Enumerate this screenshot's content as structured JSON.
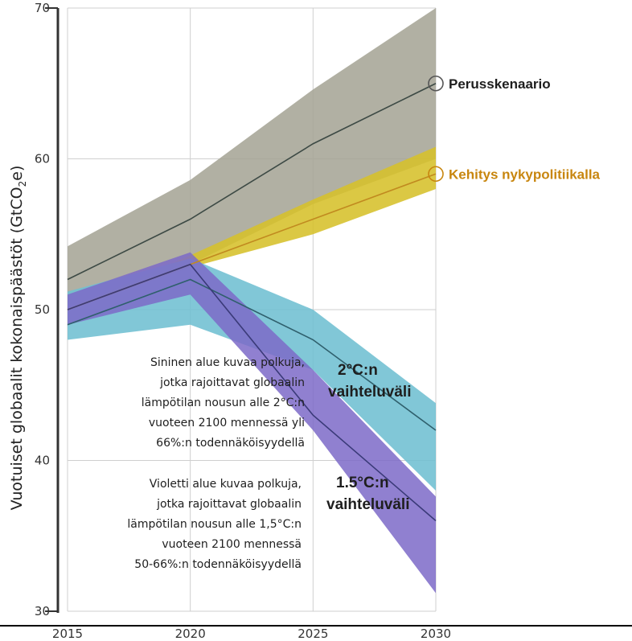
{
  "chart_data": {
    "type": "area",
    "ylabel_main": "Vuotuiset globaalit kokonaispäästöt (GtCO",
    "ylabel_sub": "2",
    "ylabel_end": "e)",
    "xlabel": "",
    "x": [
      2015,
      2020,
      2025,
      2030
    ],
    "xlim": [
      2015,
      2030
    ],
    "ylim": [
      30,
      70
    ],
    "x_ticks": [
      "2015",
      "2020",
      "2025",
      "2030"
    ],
    "y_ticks": [
      "30",
      "40",
      "50",
      "60",
      "70"
    ],
    "grid": true,
    "bands": [
      {
        "id": "baseline",
        "color": "#a6a596",
        "x": [
          2015,
          2020,
          2025,
          2030
        ],
        "low": [
          50,
          53,
          57,
          60
        ],
        "high": [
          54.2,
          58.6,
          64.6,
          70
        ],
        "center": [
          52,
          56,
          61,
          65
        ],
        "line_color": "#3d4a45"
      },
      {
        "id": "current-policy",
        "color": "#d6c02a",
        "x": [
          2015,
          2020,
          2025,
          2030
        ],
        "low": [
          50,
          52.8,
          55,
          58
        ],
        "high": [
          50,
          53.6,
          57.3,
          60.8
        ],
        "center": [
          50,
          53,
          56,
          59
        ],
        "line_color": "#c18a1f"
      },
      {
        "id": "range-2c",
        "color": "#6fbfd2",
        "x": [
          2015,
          2020,
          2025,
          2030
        ],
        "low": [
          48,
          49,
          46,
          38
        ],
        "high": [
          51.2,
          53.4,
          50,
          43.8
        ],
        "center": [
          49,
          52,
          48,
          42
        ],
        "line_color": "#2f5f6c"
      },
      {
        "id": "range-15c",
        "color": "#7c6ac8",
        "x": [
          2015,
          2020,
          2025,
          2030
        ],
        "low": [
          49,
          51,
          42,
          31.2
        ],
        "high": [
          51,
          53.8,
          46,
          37.6
        ],
        "center": [
          50,
          53,
          43,
          36
        ],
        "line_color": "#3a3a78"
      }
    ],
    "series_labels": [
      {
        "name": "Perusskenaario",
        "x": 2030,
        "y": 65,
        "color": "#1e1e1e",
        "marker_color": "#555555"
      },
      {
        "name": "Kehitys nykypolitiikalla",
        "x": 2030,
        "y": 59,
        "color": "#c8860f",
        "marker_color": "#c8860f"
      }
    ],
    "range_labels": [
      {
        "lines": [
          "2°C:n",
          "vaihteluväli"
        ]
      },
      {
        "lines": [
          "1.5°C:n",
          "vaihteluväli"
        ]
      }
    ],
    "notes": [
      {
        "lines": [
          "Sininen alue kuvaa polkuja,",
          "jotka rajoittavat globaalin",
          "lämpötilan nousun alle 2°C:n",
          "vuoteen 2100 mennessä yli",
          "66%:n todennäköisyydellä"
        ]
      },
      {
        "lines": [
          "Violetti alue kuvaa polkuja,",
          "jotka rajoittavat globaalin",
          "lämpötilan nousun alle 1,5°C:n",
          "vuoteen 2100 mennessä",
          "50-66%:n todennäköisyydellä"
        ]
      }
    ]
  }
}
